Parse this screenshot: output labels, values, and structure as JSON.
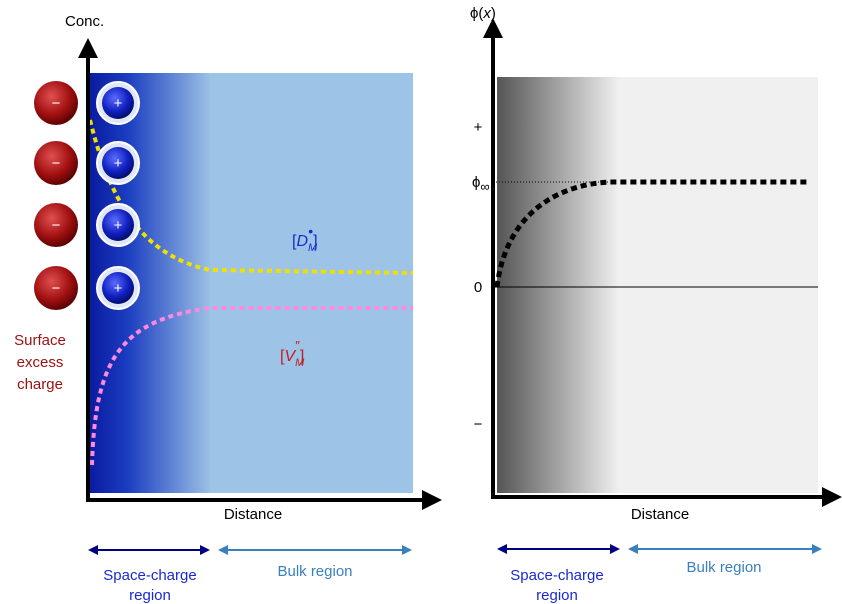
{
  "left_panel": {
    "y_axis_label": "Conc.",
    "x_axis_label": "Distance",
    "anion_signs": [
      "−",
      "−",
      "−",
      "−"
    ],
    "cation_signs": [
      "+",
      "+",
      "+",
      "+"
    ],
    "surface_label": [
      "Surface",
      "excess",
      "charge"
    ],
    "donor_label": {
      "open": "[",
      "symbol": "D",
      "subscript": "M",
      "superscript": "•",
      "close": "]"
    },
    "vacancy_label": {
      "open": "[",
      "symbol": "V",
      "subscript": "M",
      "superscript": "″",
      "close": "]"
    },
    "space_charge_label": [
      "Space-charge",
      "region"
    ],
    "bulk_label": "Bulk region"
  },
  "right_panel": {
    "y_axis_label": {
      "symbol": "ϕ(",
      "variable": "x",
      "close": ")"
    },
    "x_axis_label": "Distance",
    "tick_plus": "+",
    "tick_phi_inf": {
      "symbol": "ϕ",
      "subscript": "∞"
    },
    "tick_zero": "0",
    "tick_minus": "−",
    "space_charge_label": [
      "Space-charge",
      "region"
    ],
    "bulk_label": "Bulk region"
  }
}
